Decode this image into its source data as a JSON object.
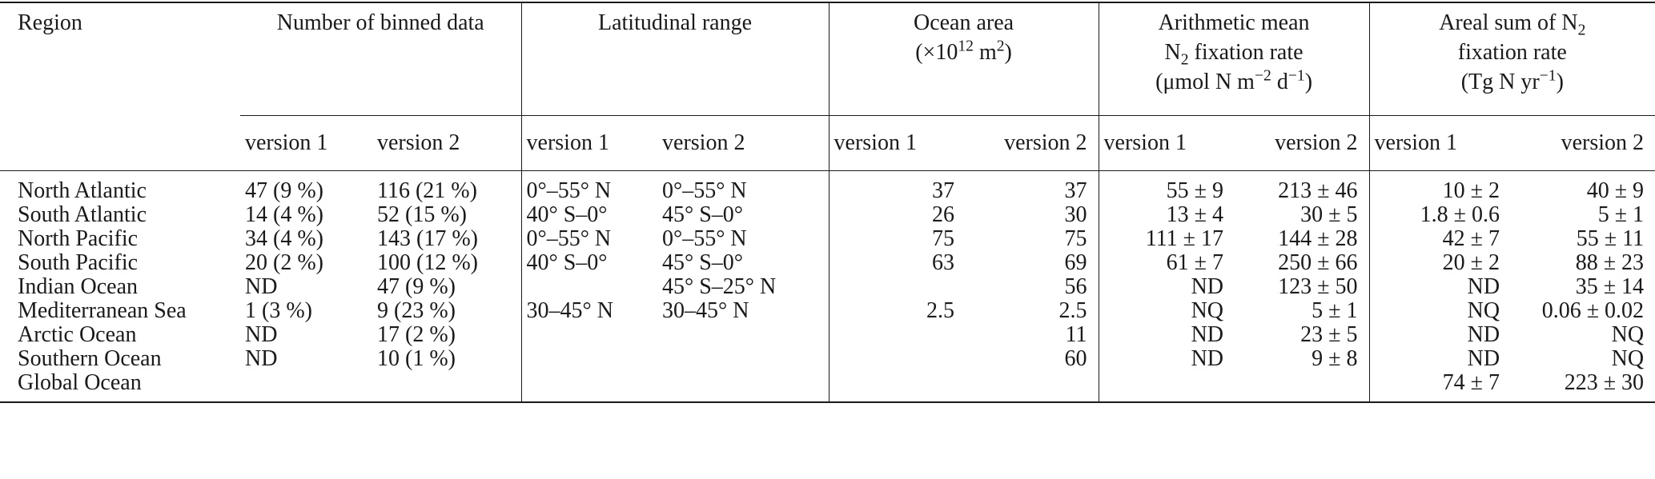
{
  "table": {
    "header": {
      "region": "Region",
      "binned": "Number of binned data",
      "lat": "Latitudinal range",
      "ocean_area_line1": "Ocean area",
      "ocean_area_line2_pre": "(×10",
      "ocean_area_line2_sup": "12",
      "ocean_area_line2_unit": " m",
      "ocean_area_line2_unit_sup": "2",
      "ocean_area_line2_post": ")",
      "mean_line1": "Arithmetic mean",
      "mean_line2_pre": "N",
      "mean_line2_sub": "2",
      "mean_line2_post": " fixation rate",
      "mean_line3_pre": "(μmol N m",
      "mean_line3_sup1": "−2",
      "mean_line3_mid": " d",
      "mean_line3_sup2": "−1",
      "mean_line3_post": ")",
      "sum_line1_pre": "Areal sum of N",
      "sum_line1_sub": "2",
      "sum_line2": "fixation rate",
      "sum_line3_pre": "(Tg N yr",
      "sum_line3_sup": "−1",
      "sum_line3_post": ")"
    },
    "versions": [
      "version 1",
      "version 2",
      "version 1",
      "version 2",
      "version 1",
      "version 2",
      "version 1",
      "version 2",
      "version 1",
      "version 2"
    ],
    "rows": [
      {
        "region": "North Atlantic",
        "n1": "47 (9 %)",
        "n2": "116 (21 %)",
        "l1": "0°–55° N",
        "l2": "0°–55° N",
        "o1": "37",
        "o2": "37",
        "m1": "55 ± 9",
        "m2": "213 ± 46",
        "s1": "10 ± 2",
        "s2": "40 ± 9"
      },
      {
        "region": "South Atlantic",
        "n1": "14 (4 %)",
        "n2": "52 (15 %)",
        "l1": "40° S–0°",
        "l2": "45° S–0°",
        "o1": "26",
        "o2": "30",
        "m1": "13 ± 4",
        "m2": "30 ± 5",
        "s1": "1.8 ± 0.6",
        "s2": "5 ± 1"
      },
      {
        "region": "North Pacific",
        "n1": "34 (4 %)",
        "n2": "143 (17 %)",
        "l1": "0°–55° N",
        "l2": "0°–55° N",
        "o1": "75",
        "o2": "75",
        "m1": "111 ± 17",
        "m2": "144 ± 28",
        "s1": "42 ± 7",
        "s2": "55 ± 11"
      },
      {
        "region": "South Pacific",
        "n1": "20 (2 %)",
        "n2": "100 (12 %)",
        "l1": "40° S–0°",
        "l2": "45° S–0°",
        "o1": "63",
        "o2": "69",
        "m1": "61 ± 7",
        "m2": "250 ± 66",
        "s1": "20 ± 2",
        "s2": "88 ± 23"
      },
      {
        "region": "Indian Ocean",
        "n1": "ND",
        "n2": "47 (9 %)",
        "l1": "",
        "l2": "45° S–25° N",
        "o1": "",
        "o2": "56",
        "m1": "ND",
        "m2": "123 ± 50",
        "s1": "ND",
        "s2": "35 ± 14"
      },
      {
        "region": "Mediterranean Sea",
        "n1": "1 (3 %)",
        "n2": "9 (23 %)",
        "l1": "30–45° N",
        "l2": "30–45° N",
        "o1": "2.5",
        "o2": "2.5",
        "m1": "NQ",
        "m2": "5 ± 1",
        "s1": "NQ",
        "s2": "0.06 ± 0.02"
      },
      {
        "region": "Arctic Ocean",
        "n1": "ND",
        "n2": "17 (2 %)",
        "l1": "",
        "l2": "",
        "o1": "",
        "o2": "11",
        "m1": "ND",
        "m2": "23 ± 5",
        "s1": "ND",
        "s2": "NQ"
      },
      {
        "region": "Southern Ocean",
        "n1": "ND",
        "n2": "10 (1 %)",
        "l1": "",
        "l2": "",
        "o1": "",
        "o2": "60",
        "m1": "ND",
        "m2": "9 ± 8",
        "s1": "ND",
        "s2": "NQ"
      },
      {
        "region": "Global Ocean",
        "n1": "",
        "n2": "",
        "l1": "",
        "l2": "",
        "o1": "",
        "o2": "",
        "m1": "",
        "m2": "",
        "s1": "74 ± 7",
        "s2": "223 ± 30"
      }
    ]
  }
}
